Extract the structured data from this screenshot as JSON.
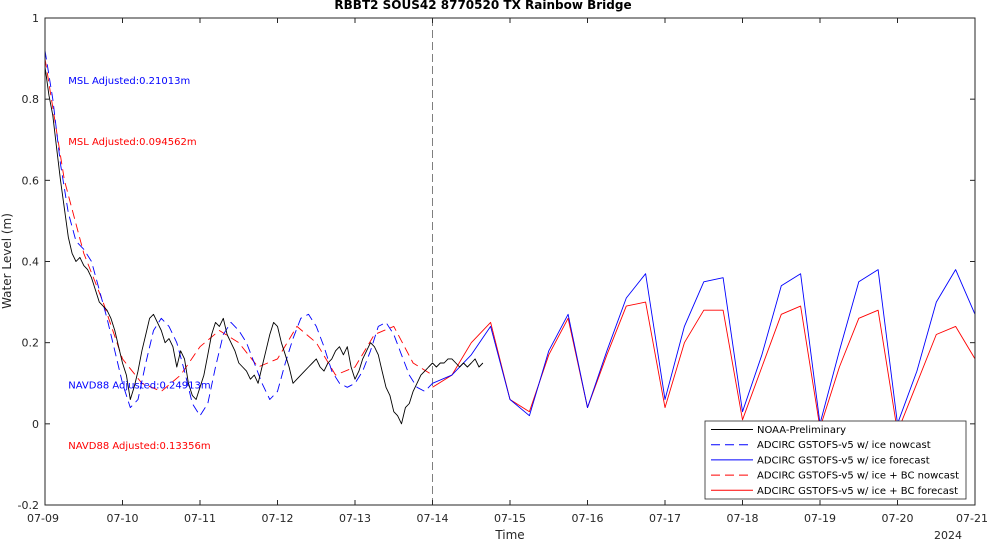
{
  "chart_data": {
    "type": "line",
    "title": "RBBT2 SOUS42 8770520 TX Rainbow Bridge",
    "xlabel": "Time",
    "ylabel": "Water Level (m)",
    "xlim": [
      0,
      12
    ],
    "ylim": [
      -0.2,
      1
    ],
    "x_ticks": [
      0,
      1,
      2,
      3,
      4,
      5,
      6,
      7,
      8,
      9,
      10,
      11,
      12
    ],
    "x_tick_labels": [
      "07-09",
      "07-10",
      "07-11",
      "07-12",
      "07-13",
      "07-14",
      "07-15",
      "07-16",
      "07-17",
      "07-18",
      "07-19",
      "07-20",
      "07-21"
    ],
    "x_axis_year": "2024",
    "x_unit": "days since 07-09 2024",
    "y_ticks": [
      -0.2,
      0,
      0.2,
      0.4,
      0.6,
      0.8,
      1
    ],
    "y_tick_labels": [
      "-0.2",
      "0",
      "0.2",
      "0.4",
      "0.6",
      "0.8",
      "1"
    ],
    "nowcast_forecast_divider_x": 5,
    "grid": false,
    "legend_position": "bottom-right",
    "annotations": [
      {
        "text": "MSL Adjusted:0.21013m",
        "color": "#0000ff",
        "x": 0.3,
        "y": 0.845
      },
      {
        "text": "MSL Adjusted:0.094562m",
        "color": "#ff0000",
        "x": 0.3,
        "y": 0.695
      },
      {
        "text": "NAVD88 Adjusted:0.24913m",
        "color": "#0000ff",
        "x": 0.3,
        "y": 0.095
      },
      {
        "text": "NAVD88 Adjusted:0.13356m",
        "color": "#ff0000",
        "x": 0.3,
        "y": -0.055
      }
    ],
    "series": [
      {
        "name": "NOAA-Preliminary",
        "color": "#000000",
        "dash": "solid",
        "x": [
          0.0,
          0.05,
          0.1,
          0.15,
          0.2,
          0.25,
          0.3,
          0.35,
          0.4,
          0.45,
          0.5,
          0.55,
          0.6,
          0.65,
          0.7,
          0.75,
          0.8,
          0.85,
          0.9,
          0.95,
          1.0,
          1.05,
          1.1,
          1.15,
          1.2,
          1.25,
          1.3,
          1.35,
          1.4,
          1.45,
          1.5,
          1.55,
          1.6,
          1.65,
          1.7,
          1.75,
          1.8,
          1.85,
          1.9,
          1.95,
          2.0,
          2.05,
          2.1,
          2.15,
          2.2,
          2.25,
          2.3,
          2.35,
          2.4,
          2.45,
          2.5,
          2.55,
          2.6,
          2.65,
          2.7,
          2.75,
          2.8,
          2.85,
          2.9,
          2.95,
          3.0,
          3.05,
          3.1,
          3.15,
          3.2,
          3.25,
          3.3,
          3.35,
          3.4,
          3.45,
          3.5,
          3.55,
          3.6,
          3.65,
          3.7,
          3.75,
          3.8,
          3.85,
          3.9,
          3.95,
          4.0,
          4.05,
          4.1,
          4.15,
          4.2,
          4.25,
          4.3,
          4.35,
          4.4,
          4.45,
          4.5,
          4.55,
          4.6,
          4.65,
          4.7,
          4.75,
          4.8,
          4.85,
          4.9,
          4.95,
          5.0,
          5.05,
          5.1,
          5.15,
          5.2,
          5.25,
          5.3,
          5.35,
          5.4,
          5.45,
          5.5,
          5.55,
          5.6,
          5.65
        ],
        "y": [
          0.88,
          0.81,
          0.76,
          0.68,
          0.6,
          0.53,
          0.46,
          0.42,
          0.4,
          0.41,
          0.39,
          0.38,
          0.36,
          0.33,
          0.3,
          0.29,
          0.28,
          0.26,
          0.23,
          0.19,
          0.15,
          0.12,
          0.06,
          0.09,
          0.13,
          0.18,
          0.22,
          0.26,
          0.27,
          0.25,
          0.23,
          0.2,
          0.21,
          0.19,
          0.14,
          0.18,
          0.16,
          0.1,
          0.07,
          0.06,
          0.09,
          0.12,
          0.17,
          0.22,
          0.25,
          0.24,
          0.26,
          0.22,
          0.2,
          0.18,
          0.15,
          0.14,
          0.13,
          0.11,
          0.12,
          0.1,
          0.14,
          0.18,
          0.22,
          0.25,
          0.24,
          0.2,
          0.17,
          0.14,
          0.1,
          0.11,
          0.12,
          0.13,
          0.14,
          0.15,
          0.16,
          0.14,
          0.13,
          0.15,
          0.16,
          0.18,
          0.19,
          0.17,
          0.19,
          0.14,
          0.11,
          0.13,
          0.16,
          0.18,
          0.2,
          0.19,
          0.17,
          0.13,
          0.09,
          0.07,
          0.03,
          0.02,
          0.0,
          0.04,
          0.05,
          0.08,
          0.1,
          0.12,
          0.13,
          0.14,
          0.15,
          0.14,
          0.15,
          0.15,
          0.16,
          0.16,
          0.15,
          0.14,
          0.15,
          0.14,
          0.15,
          0.16,
          0.14,
          0.15
        ]
      },
      {
        "name": "ADCIRC GSTOFS-v5 w/ ice nowcast",
        "color": "#0000ff",
        "dash": "dashed",
        "x": [
          0.0,
          0.1,
          0.2,
          0.3,
          0.4,
          0.5,
          0.6,
          0.7,
          0.8,
          0.9,
          1.0,
          1.1,
          1.2,
          1.3,
          1.4,
          1.5,
          1.6,
          1.7,
          1.8,
          1.9,
          2.0,
          2.1,
          2.2,
          2.3,
          2.4,
          2.5,
          2.6,
          2.7,
          2.8,
          2.9,
          3.0,
          3.1,
          3.2,
          3.3,
          3.4,
          3.5,
          3.6,
          3.7,
          3.8,
          3.9,
          4.0,
          4.1,
          4.2,
          4.3,
          4.4,
          4.5,
          4.6,
          4.7,
          4.8,
          4.9,
          5.0
        ],
        "y": [
          0.92,
          0.8,
          0.64,
          0.52,
          0.45,
          0.43,
          0.4,
          0.33,
          0.26,
          0.18,
          0.1,
          0.04,
          0.06,
          0.15,
          0.23,
          0.26,
          0.24,
          0.2,
          0.13,
          0.05,
          0.02,
          0.05,
          0.14,
          0.22,
          0.25,
          0.23,
          0.2,
          0.15,
          0.1,
          0.06,
          0.08,
          0.15,
          0.21,
          0.26,
          0.27,
          0.24,
          0.19,
          0.13,
          0.1,
          0.09,
          0.1,
          0.13,
          0.18,
          0.24,
          0.25,
          0.22,
          0.17,
          0.12,
          0.09,
          0.08,
          0.1
        ]
      },
      {
        "name": "ADCIRC GSTOFS-v5 w/ ice forecast",
        "color": "#0000ff",
        "dash": "solid",
        "x": [
          5.0,
          5.25,
          5.5,
          5.75,
          6.0,
          6.25,
          6.5,
          6.75,
          7.0,
          7.25,
          7.5,
          7.75,
          8.0,
          8.25,
          8.5,
          8.75,
          9.0,
          9.25,
          9.5,
          9.75,
          10.0,
          10.25,
          10.5,
          10.75,
          11.0,
          11.25,
          11.5,
          11.75,
          12.0
        ],
        "y": [
          0.1,
          0.12,
          0.17,
          0.24,
          0.06,
          0.02,
          0.18,
          0.27,
          0.04,
          0.18,
          0.31,
          0.37,
          0.06,
          0.24,
          0.35,
          0.36,
          0.03,
          0.17,
          0.34,
          0.37,
          0.0,
          0.18,
          0.35,
          0.38,
          0.0,
          0.13,
          0.3,
          0.38,
          0.27
        ]
      },
      {
        "name": "ADCIRC GSTOFS-v5 w/ ice + BC nowcast",
        "color": "#ff0000",
        "dash": "dashed",
        "x": [
          0.0,
          0.25,
          0.5,
          0.75,
          1.0,
          1.25,
          1.5,
          1.75,
          2.0,
          2.25,
          2.5,
          2.75,
          3.0,
          3.25,
          3.5,
          3.75,
          4.0,
          4.25,
          4.5,
          4.75,
          5.0
        ],
        "y": [
          0.9,
          0.6,
          0.42,
          0.3,
          0.16,
          0.1,
          0.08,
          0.12,
          0.19,
          0.23,
          0.2,
          0.14,
          0.16,
          0.24,
          0.2,
          0.12,
          0.14,
          0.22,
          0.24,
          0.15,
          0.12
        ]
      },
      {
        "name": "ADCIRC GSTOFS-v5 w/ ice + BC forecast",
        "color": "#ff0000",
        "dash": "solid",
        "x": [
          5.0,
          5.25,
          5.5,
          5.75,
          6.0,
          6.25,
          6.5,
          6.75,
          7.0,
          7.25,
          7.5,
          7.75,
          8.0,
          8.25,
          8.5,
          8.75,
          9.0,
          9.25,
          9.5,
          9.75,
          10.0,
          10.25,
          10.5,
          10.75,
          11.0,
          11.25,
          11.5,
          11.75,
          12.0
        ],
        "y": [
          0.09,
          0.12,
          0.2,
          0.25,
          0.06,
          0.03,
          0.17,
          0.26,
          0.04,
          0.17,
          0.29,
          0.3,
          0.04,
          0.2,
          0.28,
          0.28,
          0.01,
          0.14,
          0.27,
          0.29,
          -0.01,
          0.14,
          0.26,
          0.28,
          -0.02,
          0.1,
          0.22,
          0.24,
          0.16
        ]
      }
    ]
  }
}
